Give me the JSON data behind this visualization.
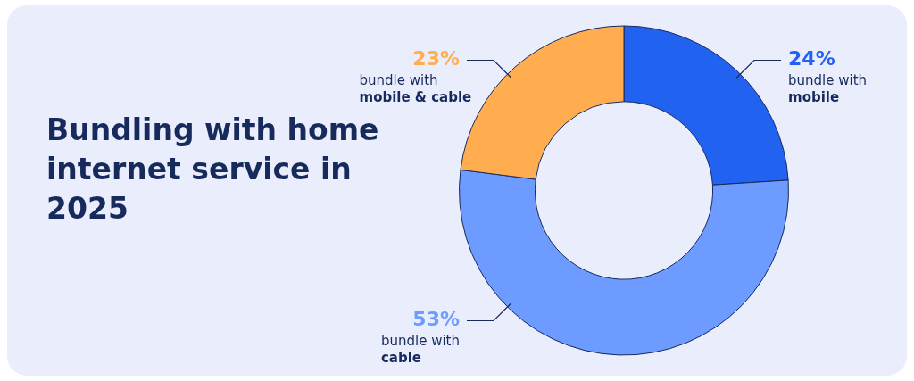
{
  "chart_data": {
    "type": "donut",
    "title": "Bundling with home internet service in 2025",
    "categories": [
      "bundle with mobile",
      "bundle with cable",
      "bundle with mobile & cable"
    ],
    "values": [
      24,
      53,
      23
    ],
    "colors": [
      "#2162f0",
      "#6e9bff",
      "#ffad4f"
    ],
    "value_labels": [
      "24%",
      "53%",
      "23%"
    ],
    "legend": false
  }
}
